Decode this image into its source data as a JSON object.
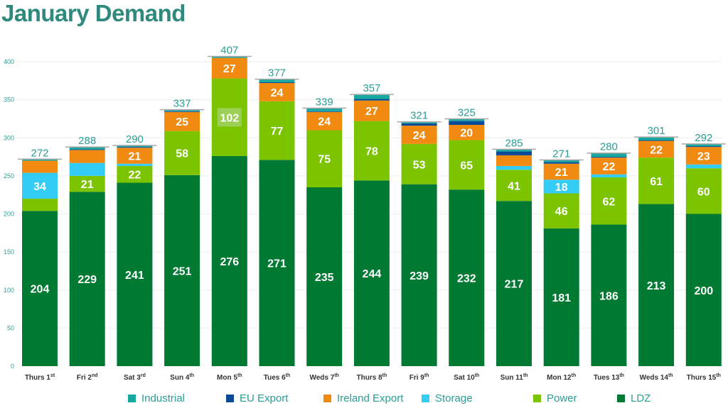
{
  "title": "January Demand",
  "chart_data": {
    "type": "bar",
    "stacked": true,
    "title": "January Demand",
    "xlabel": "",
    "ylabel": "",
    "ylim": [
      0,
      420
    ],
    "yticks": [
      0,
      50,
      100,
      150,
      200,
      250,
      300,
      350,
      400
    ],
    "grid": true,
    "legend_position": "bottom",
    "categories": [
      {
        "label": "Thurs 1",
        "suffix": "st"
      },
      {
        "label": "Fri 2",
        "suffix": "nd"
      },
      {
        "label": "Sat 3",
        "suffix": "rd"
      },
      {
        "label": "Sun 4",
        "suffix": "th"
      },
      {
        "label": "Mon 5",
        "suffix": "th"
      },
      {
        "label": "Tues 6",
        "suffix": "th"
      },
      {
        "label": "Weds 7",
        "suffix": "th"
      },
      {
        "label": "Thurs 8",
        "suffix": "th"
      },
      {
        "label": "Fri 9",
        "suffix": "th"
      },
      {
        "label": "Sat 10",
        "suffix": "th"
      },
      {
        "label": "Sun 11",
        "suffix": "th"
      },
      {
        "label": "Mon 12",
        "suffix": "th"
      },
      {
        "label": "Tues 13",
        "suffix": "th"
      },
      {
        "label": "Weds 14",
        "suffix": "th"
      },
      {
        "label": "Thurs 15",
        "suffix": "th"
      }
    ],
    "series": [
      {
        "name": "LDZ",
        "color": "#007a33",
        "values": [
          204,
          229,
          241,
          251,
          276,
          271,
          235,
          244,
          239,
          232,
          217,
          181,
          186,
          213,
          200
        ],
        "labels": [
          204,
          229,
          241,
          251,
          276,
          271,
          235,
          244,
          239,
          232,
          217,
          181,
          186,
          213,
          200
        ]
      },
      {
        "name": "Power",
        "color": "#7dc400",
        "values": [
          16,
          21,
          22,
          58,
          102,
          77,
          75,
          78,
          53,
          65,
          41,
          46,
          62,
          61,
          60
        ],
        "labels": [
          null,
          21,
          22,
          58,
          102,
          77,
          75,
          78,
          53,
          65,
          41,
          46,
          62,
          61,
          60
        ]
      },
      {
        "name": "Storage",
        "color": "#33ccf5",
        "values": [
          34,
          17,
          3,
          0,
          0,
          0,
          0,
          0,
          0,
          0,
          5,
          18,
          4,
          0,
          5
        ],
        "labels": [
          34,
          null,
          null,
          null,
          null,
          null,
          null,
          null,
          null,
          null,
          null,
          18,
          null,
          null,
          null
        ]
      },
      {
        "name": "Ireland Export",
        "color": "#f08a10",
        "values": [
          16,
          17,
          21,
          25,
          27,
          24,
          24,
          27,
          24,
          20,
          14,
          21,
          22,
          22,
          23
        ],
        "labels": [
          null,
          null,
          21,
          25,
          27,
          24,
          24,
          27,
          24,
          20,
          null,
          21,
          22,
          22,
          23
        ]
      },
      {
        "name": "EU Export",
        "color": "#0b4a99",
        "values": [
          0,
          1,
          1,
          1,
          0,
          1,
          1,
          2,
          3,
          5,
          5,
          2,
          1,
          1,
          1
        ],
        "labels": [
          null,
          null,
          null,
          null,
          null,
          null,
          null,
          null,
          null,
          null,
          null,
          null,
          null,
          null,
          null
        ]
      },
      {
        "name": "Industrial",
        "color": "#17a8a0",
        "values": [
          2,
          3,
          2,
          2,
          2,
          4,
          4,
          6,
          2,
          3,
          3,
          3,
          5,
          4,
          3
        ],
        "labels": [
          null,
          null,
          null,
          null,
          null,
          null,
          null,
          null,
          null,
          null,
          null,
          null,
          null,
          null,
          null
        ]
      }
    ],
    "totals": [
      272,
      288,
      290,
      337,
      407,
      377,
      339,
      357,
      321,
      325,
      285,
      271,
      280,
      301,
      292
    ],
    "highlighted_label": {
      "series": "Power",
      "category_index": 4
    }
  },
  "legend": [
    "Industrial",
    "EU Export",
    "Ireland Export",
    "Storage",
    "Power",
    "LDZ"
  ]
}
